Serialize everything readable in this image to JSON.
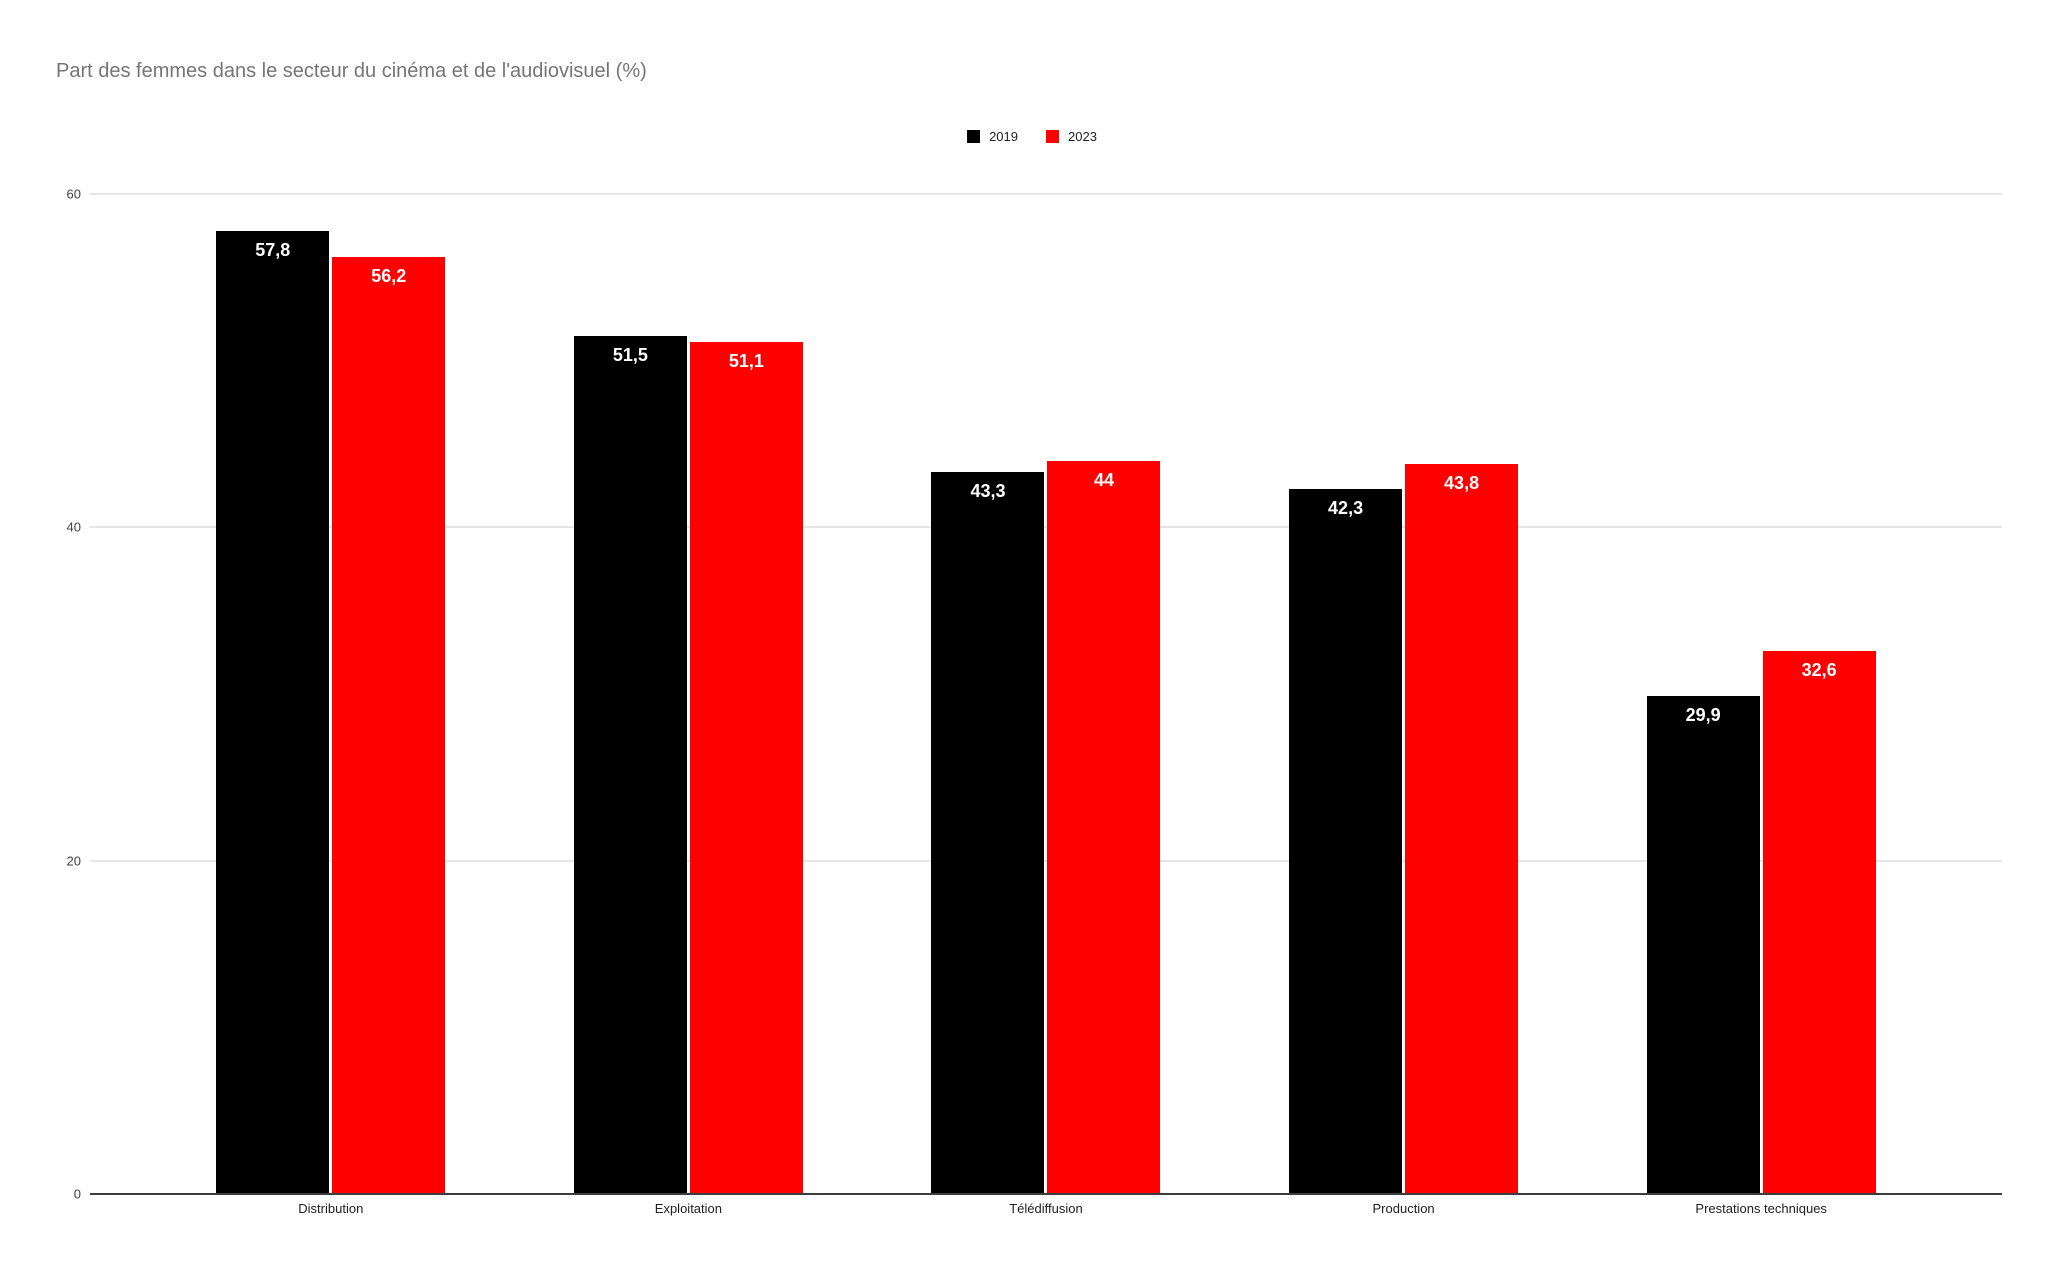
{
  "title": "Part des femmes dans le secteur du cinéma et de l'audiovisuel (%)",
  "chart_data": {
    "type": "bar",
    "title": "Part des femmes dans le secteur du cinéma et de l'audiovisuel (%)",
    "categories": [
      "Distribution",
      "Exploitation",
      "Télédiffusion",
      "Production",
      "Prestations techniques"
    ],
    "series": [
      {
        "name": "2019",
        "color": "#000000",
        "values": [
          57.8,
          51.5,
          43.3,
          42.3,
          29.9
        ],
        "labels": [
          "57,8",
          "51,5",
          "43,3",
          "42,3",
          "29,9"
        ]
      },
      {
        "name": "2023",
        "color": "#ff0000",
        "values": [
          56.2,
          51.1,
          44,
          43.8,
          32.6
        ],
        "labels": [
          "56,2",
          "51,1",
          "44",
          "43,8",
          "32,6"
        ]
      }
    ],
    "xlabel": "",
    "ylabel": "",
    "ylim": [
      0,
      60
    ],
    "yticks": [
      0,
      20,
      40,
      60
    ],
    "grid": true,
    "legend_position": "top-center",
    "value_label_color": "#ffffff"
  }
}
